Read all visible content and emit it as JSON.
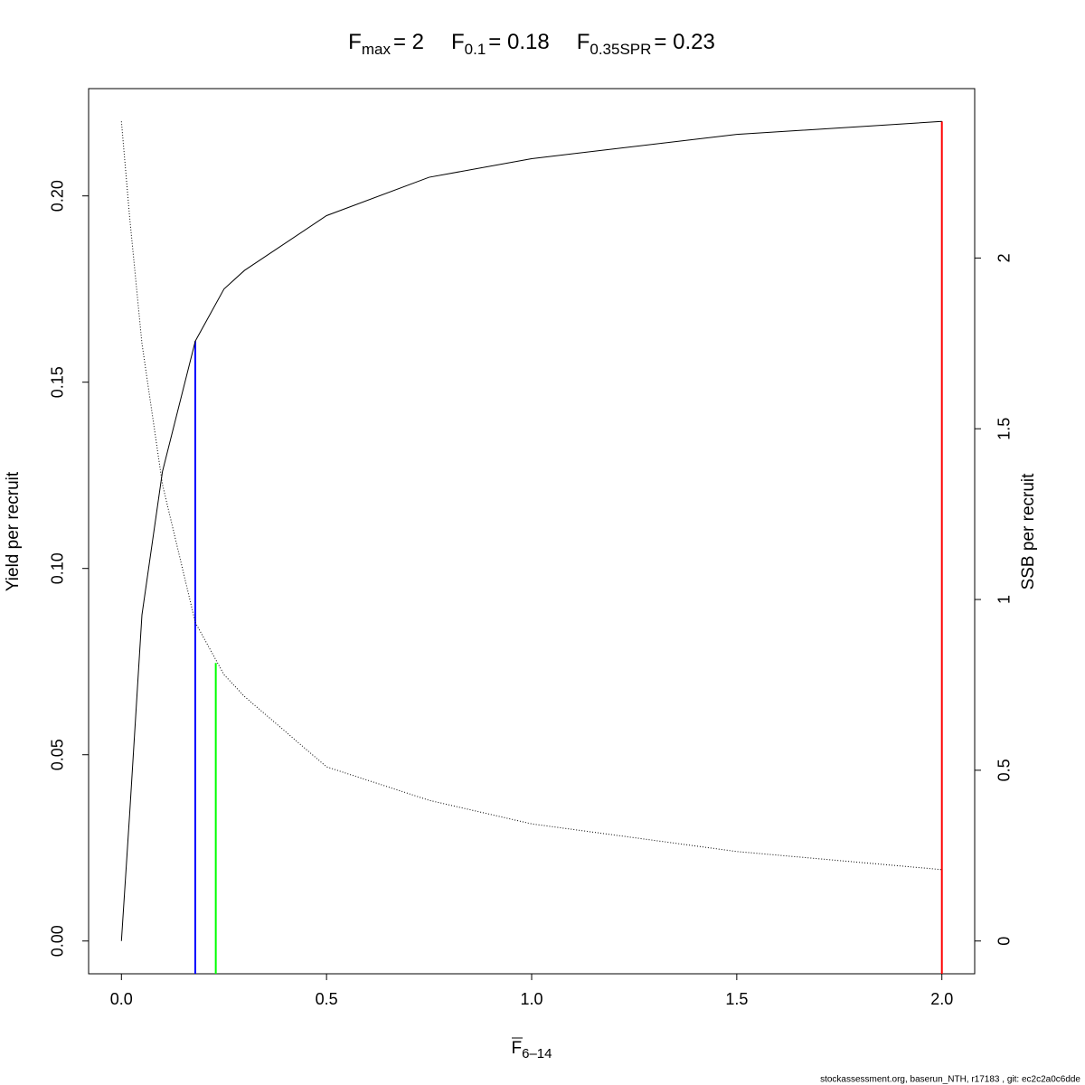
{
  "chart_data": {
    "type": "line",
    "title": [
      {
        "base": "F",
        "sub": "max",
        "eq": "= 2"
      },
      {
        "base": "F",
        "sub": "0.1",
        "eq": "= 0.18"
      },
      {
        "base": "F",
        "sub": "0.35SPR",
        "eq": "= 0.23"
      }
    ],
    "xlabel": {
      "base": "F",
      "sub": "6–14"
    },
    "ylabel": "Yield per recruit",
    "y2label": "SSB per recruit",
    "footer": "stockassessment.org, baserun_NTH, r17183 , git: ec2c2a0c6dde",
    "x": [
      0,
      0.02,
      0.05,
      0.1,
      0.18,
      0.25,
      0.3,
      0.5,
      0.75,
      1,
      1.5,
      2
    ],
    "series": [
      {
        "color": "#000000",
        "dash": "solid",
        "axis": "y",
        "values": [
          0,
          0.034,
          0.0875,
          0.126,
          0.161,
          0.175,
          0.18,
          0.1947,
          0.205,
          0.21,
          0.2165,
          0.22
        ]
      },
      {
        "color": "#000000",
        "dash": "dotted",
        "axis": "y2",
        "values": [
          2.4,
          2.12,
          1.75,
          1.337,
          0.933,
          0.78,
          0.716,
          0.51,
          0.412,
          0.343,
          0.262,
          0.209
        ]
      }
    ],
    "reference_lines": [
      {
        "x": 0.18,
        "y": 0.161,
        "axis": "y",
        "color": "#0000ff"
      },
      {
        "x": 0.23,
        "y": 0.814,
        "axis": "y2",
        "color": "#00ff00"
      },
      {
        "x": 2,
        "y": 0.22,
        "axis": "y",
        "color": "#ff0000"
      }
    ],
    "xlim": [
      -0.08,
      2.08
    ],
    "ylim": [
      -0.0088,
      0.2288
    ],
    "y2lim": [
      -0.096,
      2.496
    ],
    "xticks": [
      {
        "value": 0,
        "label": "0.0"
      },
      {
        "value": 0.5,
        "label": "0.5"
      },
      {
        "value": 1,
        "label": "1.0"
      },
      {
        "value": 1.5,
        "label": "1.5"
      },
      {
        "value": 2,
        "label": "2.0"
      }
    ],
    "yticks": [
      {
        "value": 0,
        "label": "0.00"
      },
      {
        "value": 0.05,
        "label": "0.05"
      },
      {
        "value": 0.1,
        "label": "0.10"
      },
      {
        "value": 0.15,
        "label": "0.15"
      },
      {
        "value": 0.2,
        "label": "0.20"
      }
    ],
    "y2ticks": [
      0,
      0.5,
      1,
      1.5,
      2
    ]
  }
}
